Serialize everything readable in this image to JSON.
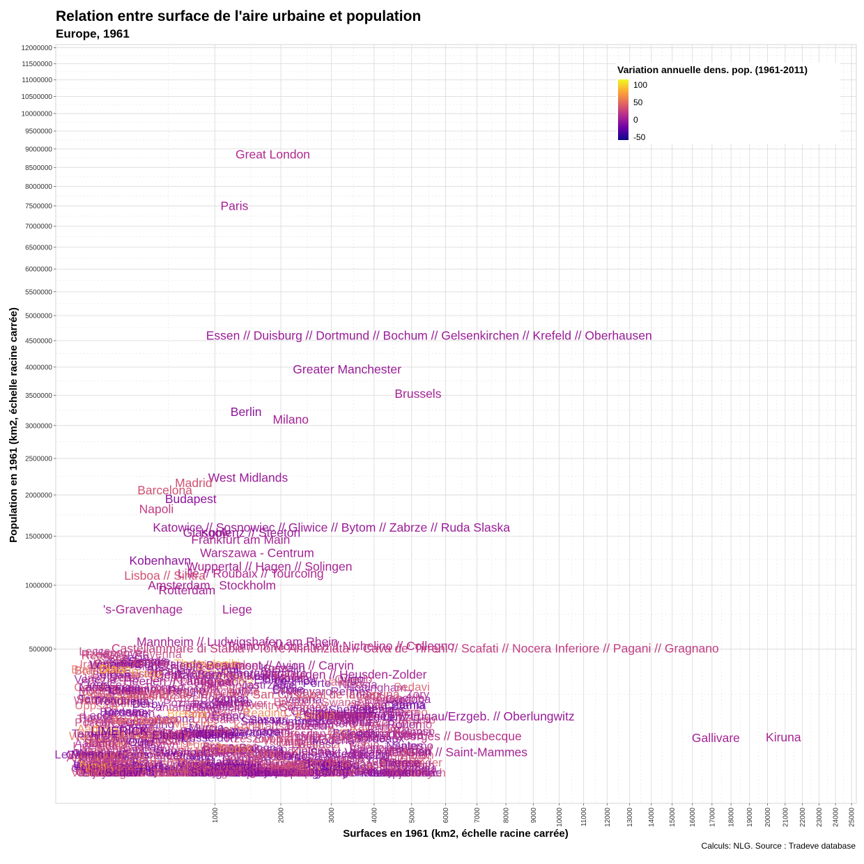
{
  "chart_data": {
    "type": "scatter",
    "title": "Relation entre surface de l'aire urbaine et population",
    "subtitle": "Europe, 1961",
    "xlabel": "Surfaces en 1961 (km2, échelle racine carrée)",
    "ylabel": "Population en 1961 (km2, échelle racine carrée)",
    "x_scale": "sqrt",
    "y_scale": "sqrt",
    "xlim": [
      0,
      25300
    ],
    "ylim": [
      0,
      12100000
    ],
    "x_ticks": [
      1000,
      2000,
      3000,
      4000,
      5000,
      6000,
      7000,
      8000,
      9000,
      10000,
      11000,
      12000,
      13000,
      14000,
      15000,
      16000,
      17000,
      18000,
      19000,
      20000,
      21000,
      22000,
      23000,
      24000,
      25000
    ],
    "y_ticks": [
      500000,
      1000000,
      1500000,
      2000000,
      2500000,
      3000000,
      3500000,
      4000000,
      4500000,
      5000000,
      5500000,
      6000000,
      6500000,
      7000000,
      7500000,
      8000000,
      8500000,
      9000000,
      9500000,
      10000000,
      10500000,
      11000000,
      11500000,
      12000000
    ],
    "grid": true,
    "legend_position": "top-right",
    "caption": "Calculs: NLG. Source : Tradeve database",
    "color_scale": {
      "title": "Variation annuelle dens. pop. (1961-2011)",
      "ticks": [
        "100",
        "50",
        "0",
        "-50"
      ],
      "palette": [
        "#0d0887",
        "#6a00a8",
        "#b12a90",
        "#e16462",
        "#fca636",
        "#f0f921"
      ]
    },
    "points": [
      {
        "label": "Great London",
        "x": 1860,
        "y": 8850000,
        "c": 10
      },
      {
        "label": "Paris",
        "x": 1260,
        "y": 7500000,
        "c": 5
      },
      {
        "label": "Essen // Duisburg // Dortmund // Bochum // Gelsenkirchen // Krefeld // Oberhausen",
        "x": 5500,
        "y": 4600000,
        "c": 0
      },
      {
        "label": "Greater Manchester",
        "x": 3350,
        "y": 3960000,
        "c": 0
      },
      {
        "label": "Brussels",
        "x": 5180,
        "y": 3530000,
        "c": 5
      },
      {
        "label": "Berlin",
        "x": 1430,
        "y": 3220000,
        "c": -5
      },
      {
        "label": "Milano",
        "x": 2180,
        "y": 3100000,
        "c": 5
      },
      {
        "label": "West Midlands",
        "x": 1460,
        "y": 2230000,
        "c": 0
      },
      {
        "label": "Madrid",
        "x": 750,
        "y": 2160000,
        "c": 30
      },
      {
        "label": "Barcelona",
        "x": 470,
        "y": 2060000,
        "c": 30
      },
      {
        "label": "Budapest",
        "x": 720,
        "y": 1950000,
        "c": -5
      },
      {
        "label": "Napoli",
        "x": 400,
        "y": 1820000,
        "c": 20
      },
      {
        "label": "Katowice // Sosnowiec // Gliwice // Bytom // Zabrze // Ruda Slaska",
        "x": 3000,
        "y": 1600000,
        "c": 0
      },
      {
        "label": "Glasgow",
        "x": 900,
        "y": 1540000,
        "c": 0
      },
      {
        "label": "Koblenz // Steeton",
        "x": 1500,
        "y": 1540000,
        "c": 0
      },
      {
        "label": "Frankfurt am Main",
        "x": 1350,
        "y": 1460000,
        "c": 5
      },
      {
        "label": "Warszawa - Centrum",
        "x": 1600,
        "y": 1320000,
        "c": 5
      },
      {
        "label": "Kobenhavn",
        "x": 430,
        "y": 1240000,
        "c": -5
      },
      {
        "label": "Wuppertal // Hagen // Solingen",
        "x": 1800,
        "y": 1180000,
        "c": 5
      },
      {
        "label": "Lille // Roubaix // Tourcoing",
        "x": 1500,
        "y": 1110000,
        "c": 10
      },
      {
        "label": "Lisboa // Sintra",
        "x": 470,
        "y": 1090000,
        "c": 30
      },
      {
        "label": "Amsterdam",
        "x": 600,
        "y": 1000000,
        "c": 5
      },
      {
        "label": "Stockholm",
        "x": 1450,
        "y": 1000000,
        "c": 5
      },
      {
        "label": "Rotterdam",
        "x": 680,
        "y": 955000,
        "c": 5
      },
      {
        "label": "Liege",
        "x": 1300,
        "y": 790000,
        "c": 5
      },
      {
        "label": "'s-Gravenhage",
        "x": 300,
        "y": 790000,
        "c": 5
      },
      {
        "label": "Torino // Moncalieri // Nichelino // Collegno",
        "x": 3200,
        "y": 520000,
        "c": 10
      },
      {
        "label": "Mannheim // Ludwigshafen am Rhein",
        "x": 1300,
        "y": 550000,
        "c": 5
      },
      {
        "label": "Castellammare di Stabia // Torre Annunziata // Cava de' Tirreni // Scafati // Nocera Inferiore // Pagani // Gragnano",
        "x": 5100,
        "y": 505000,
        "c": 20
      },
      {
        "label": "Henin-Beaumont // Avion // Carvin",
        "x": 1680,
        "y": 400000,
        "c": 5
      },
      {
        "label": "Genk // Beringen // Sint-Truiden // Heusden-Zolder",
        "x": 2180,
        "y": 350000,
        "c": 5
      },
      {
        "label": "Heerlen // Landgraaf",
        "x": 600,
        "y": 315000,
        "c": 5
      },
      {
        "label": "Santa Cruz de Tenerife // San Cristobal de la Laguna",
        "x": 1600,
        "y": 250000,
        "c": 30
      },
      {
        "label": "Wokingham",
        "x": 330,
        "y": 145000,
        "c": 40
      },
      {
        "label": "LIMERICK",
        "x": 160,
        "y": 110000,
        "c": -15
      },
      {
        "label": "Gallivare",
        "x": 17200,
        "y": 90000,
        "c": 5
      },
      {
        "label": "Kiruna",
        "x": 20900,
        "y": 92000,
        "c": 5
      },
      {
        "label": "Stollberg/Erzgeb. // Lugau/Erzgeb. // Oberlungwitz",
        "x": 5800,
        "y": 160000,
        "c": 0
      },
      {
        "label": "Villeneuve-Saint-Georges // Bousbecque",
        "x": 5000,
        "y": 95000,
        "c": 15
      },
      {
        "label": "Sankt Veit an der Glan // Saint-Mammes",
        "x": 5200,
        "y": 55000,
        "c": 5
      },
      {
        "label": "Castello de la Plana",
        "x": 3000,
        "y": 34000,
        "c": 30
      },
      {
        "label": "Dinan",
        "x": 140,
        "y": 380000,
        "c": 70
      }
    ],
    "dense_labels": [
      "Lyon",
      "Dusseldorf",
      "Palermo",
      "Porto",
      "Marseille",
      "Dresden",
      "Leipzig",
      "Bremen",
      "Hannover",
      "Nurnberg",
      "Stuttgart",
      "Bristol",
      "Leeds",
      "Sheffield",
      "Liverpool",
      "Brest",
      "Cork",
      "Bergen",
      "Malmo",
      "Aarhus",
      "Espoo",
      "Vantaa",
      "Genova",
      "Bologna",
      "Firenze",
      "Valencia",
      "Sevilla",
      "Bilbao",
      "Zaragoza",
      "Athina",
      "Praha",
      "Wroclaw",
      "Lodz",
      "Krakow",
      "Gdansk",
      "Poznan",
      "Szczecin",
      "Bratislava",
      "Ljubljana",
      "Wien",
      "Graz",
      "Linz",
      "Zurich",
      "Geneve",
      "Basel",
      "Bern",
      "Lausanne",
      "Antwerpen",
      "Gent",
      "Utrecht",
      "Eindhoven",
      "Nantes",
      "Rennes",
      "Nice",
      "Toulouse",
      "Bordeaux",
      "Strasbourg",
      "Grenoble",
      "Rouen",
      "Dublin",
      "Edinburgh",
      "Cardiff",
      "Belfast",
      "Nottingham",
      "Leicester",
      "Southampton",
      "Portsmouth",
      "Brighton",
      "Reading",
      "Oxford",
      "Cambridge",
      "Plymouth",
      "Coventry",
      "Derby",
      "Hull",
      "York",
      "Aberdeen",
      "Dundee",
      "Swansea",
      "Limerick",
      "Galway",
      "Waterford",
      "Reykjavik",
      "Tampere",
      "Turku",
      "Oulu",
      "Umea",
      "Lulea",
      "Goteborg",
      "Uppsala",
      "Odense",
      "Aalborg",
      "Trondheim",
      "Stavanger",
      "Tromso",
      "Bari",
      "Catania",
      "Messina",
      "Verona",
      "Padova",
      "Venezia",
      "Trieste",
      "Brescia",
      "Bergamo",
      "Como",
      "Salerno",
      "Cagliari",
      "Sassari",
      "Perugia",
      "Ancona",
      "Pescara",
      "Lecce",
      "Taranto",
      "Reggio",
      "Modena",
      "Parma",
      "Ravenna",
      "Rimini",
      "Livorno",
      "Pisa",
      "Alicante",
      "Malaga",
      "Murcia",
      "Cordoba",
      "Granada",
      "Vigo",
      "Gijon",
      "Oviedo",
      "Santander",
      "Pamplona",
      "Valladolid",
      "Coimbra",
      "Braga",
      "Funchal",
      "Thessaloniki",
      "Patra",
      "Iraklio",
      "Larisa",
      "Nicosia",
      "Valletta",
      "Le Mée-sur-Seine",
      "Saint-Mammes",
      "Vicovaro",
      "Daventry",
      "Kolonia",
      "Tarnowskie",
      "Sedavi",
      "Rybnik",
      "Zory",
      "Jastrzebie",
      "Raciborz",
      "Olsztyn",
      "Kielce",
      "Lublin",
      "Rzeszow",
      "Bialystok",
      "Torun",
      "Bydgoszcz",
      "Opole",
      "Plock",
      "Radom",
      "Tarnow",
      "Elblag",
      "Koszalin",
      "Slupsk",
      "Legnica",
      "Walbrzych",
      "Zielona",
      "Gorzow",
      "Kalisz",
      "Konin",
      "Leszno",
      "Pila"
    ]
  }
}
